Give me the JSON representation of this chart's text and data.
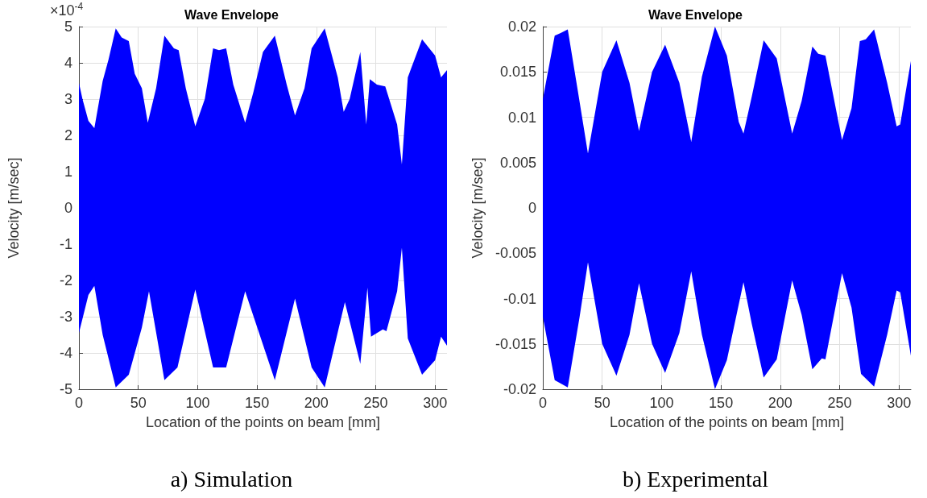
{
  "chart_data": [
    {
      "type": "area",
      "title": "Wave Envelope",
      "xlabel": "Location of the points on beam [mm]",
      "ylabel": "Velocity [m/sec]",
      "annotations": [
        "×10$^{-4}$",
        "a) Simulation"
      ],
      "xlim": [
        0,
        310
      ],
      "xticks": [
        0,
        50,
        100,
        150,
        200,
        250,
        300
      ],
      "ylim": [
        -5,
        5
      ],
      "yticks": [
        -5,
        -4,
        -3,
        -2,
        -1,
        0,
        1,
        2,
        3,
        4,
        5
      ],
      "grid": true,
      "series": [
        {
          "color": "#0000ff",
          "x": [
            0,
            3,
            8,
            13,
            20,
            25,
            31,
            36,
            42,
            47,
            53,
            58,
            65,
            72,
            80,
            84,
            90,
            98,
            106,
            113,
            118,
            124,
            130,
            140,
            147,
            155,
            165,
            175,
            182,
            190,
            196,
            207,
            218,
            223,
            228,
            237,
            242,
            245,
            251,
            258,
            268,
            272,
            277,
            289,
            300,
            305,
            310
          ],
          "values": [
            3.45,
            3.0,
            2.4,
            2.2,
            3.5,
            4.1,
            4.95,
            4.7,
            4.6,
            3.7,
            3.3,
            2.35,
            3.3,
            4.75,
            4.4,
            4.35,
            3.3,
            2.25,
            3.0,
            4.4,
            4.35,
            4.4,
            3.4,
            2.35,
            3.2,
            4.3,
            4.75,
            3.4,
            2.55,
            3.3,
            4.4,
            4.95,
            3.6,
            2.65,
            3.0,
            4.3,
            2.3,
            3.55,
            3.4,
            3.35,
            2.3,
            1.2,
            3.6,
            4.65,
            4.2,
            3.6,
            3.8
          ]
        },
        {
          "color": "#0000ff",
          "x": [
            0,
            8,
            13,
            20,
            31,
            42,
            53,
            59,
            72,
            83,
            98,
            113,
            124,
            140,
            165,
            182,
            196,
            207,
            224,
            237,
            243,
            246,
            256,
            259,
            268,
            272,
            277,
            289,
            300,
            305,
            310
          ],
          "values": [
            -3.45,
            -2.4,
            -2.15,
            -3.5,
            -4.95,
            -4.6,
            -3.3,
            -2.3,
            -4.75,
            -4.4,
            -2.25,
            -4.4,
            -4.4,
            -2.3,
            -4.75,
            -2.5,
            -4.4,
            -4.95,
            -2.6,
            -4.3,
            -2.2,
            -3.55,
            -3.35,
            -3.4,
            -2.3,
            -1.1,
            -3.6,
            -4.6,
            -4.2,
            -3.55,
            -3.8
          ]
        }
      ]
    },
    {
      "type": "area",
      "title": "Wave Envelope",
      "xlabel": "Location of the points on beam [mm]",
      "ylabel": "Velocity [m/sec]",
      "annotations": [
        "b) Experimental"
      ],
      "xlim": [
        0,
        310
      ],
      "xticks": [
        0,
        50,
        100,
        150,
        200,
        250,
        300
      ],
      "ylim": [
        -0.02,
        0.02
      ],
      "yticks": [
        -0.02,
        -0.015,
        -0.01,
        -0.005,
        0,
        0.005,
        0.01,
        0.015,
        0.02
      ],
      "grid": true,
      "series": [
        {
          "color": "#0000ff",
          "x": [
            0,
            10,
            15,
            21,
            30,
            38,
            50,
            62,
            73,
            81,
            92,
            103,
            115,
            125,
            134,
            145,
            155,
            165,
            169,
            176,
            186,
            197,
            210,
            218,
            227,
            232,
            238,
            252,
            260,
            267,
            272,
            279,
            290,
            298,
            301,
            310
          ],
          "values": [
            0.012,
            0.019,
            0.0193,
            0.0197,
            0.0125,
            0.006,
            0.015,
            0.0185,
            0.0138,
            0.0085,
            0.015,
            0.018,
            0.0138,
            0.0073,
            0.0145,
            0.02,
            0.0168,
            0.0095,
            0.0082,
            0.0123,
            0.0185,
            0.0165,
            0.0082,
            0.0118,
            0.0178,
            0.017,
            0.0168,
            0.0075,
            0.011,
            0.0184,
            0.0186,
            0.0197,
            0.0138,
            0.009,
            0.0092,
            0.0162
          ]
        },
        {
          "color": "#0000ff",
          "x": [
            0,
            10,
            21,
            31,
            38,
            50,
            62,
            73,
            81,
            92,
            103,
            115,
            125,
            134,
            145,
            155,
            169,
            176,
            186,
            197,
            210,
            218,
            227,
            235,
            238,
            252,
            260,
            268,
            279,
            290,
            298,
            301,
            310
          ],
          "values": [
            -0.012,
            -0.019,
            -0.0198,
            -0.012,
            -0.006,
            -0.015,
            -0.0185,
            -0.014,
            -0.0083,
            -0.015,
            -0.0182,
            -0.0138,
            -0.007,
            -0.014,
            -0.02,
            -0.0168,
            -0.0082,
            -0.0128,
            -0.0187,
            -0.0167,
            -0.008,
            -0.0118,
            -0.0178,
            -0.0166,
            -0.0167,
            -0.0072,
            -0.011,
            -0.0183,
            -0.0197,
            -0.014,
            -0.0091,
            -0.0093,
            -0.0163
          ]
        }
      ]
    }
  ]
}
